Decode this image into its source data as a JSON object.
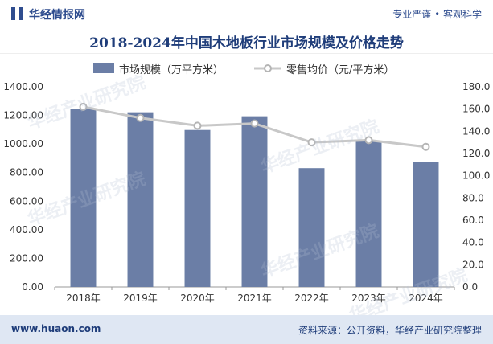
{
  "header": {
    "site_name": "华经情报网",
    "slogan": "专业严谨 • 客观科学"
  },
  "watermark_text": "华经产业研究院",
  "chart_data": {
    "type": "bar",
    "title": "2018-2024年中国木地板行业市场规模及价格走势",
    "categories": [
      "2018年",
      "2019年",
      "2020年",
      "2021年",
      "2022年",
      "2023年",
      "2024年"
    ],
    "series": [
      {
        "name": "市场规模（万平方米）",
        "type": "bar",
        "axis": "left",
        "color": "#6b7ea6",
        "values": [
          1248,
          1222,
          1098,
          1194,
          831,
          1022,
          875
        ]
      },
      {
        "name": "零售均价（元/平方米）",
        "type": "line",
        "axis": "right",
        "color": "#c8c8c8",
        "values": [
          162,
          152,
          145,
          147,
          130,
          132,
          126
        ]
      }
    ],
    "y_left": {
      "min": 0,
      "max": 1400,
      "step": 200,
      "tick_labels": [
        "0.00",
        "200.00",
        "400.00",
        "600.00",
        "800.00",
        "1000.00",
        "1200.00",
        "1400.00"
      ]
    },
    "y_right": {
      "min": 0,
      "max": 180,
      "step": 20,
      "tick_labels": [
        "0.0",
        "20.0",
        "40.0",
        "60.0",
        "80.0",
        "100.0",
        "120.0",
        "140.0",
        "160.0",
        "180.0"
      ]
    },
    "grid": false,
    "legend": "top-center"
  },
  "footer": {
    "website": "www.huaon.com",
    "source": "资料来源：公开资料，华经产业研究院整理"
  }
}
